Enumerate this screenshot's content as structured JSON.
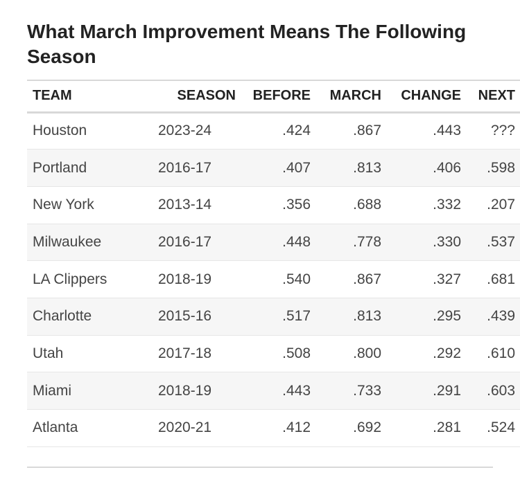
{
  "title": "What March Improvement Means The Following Season",
  "columns": [
    "TEAM",
    "SEASON",
    "BEFORE",
    "MARCH",
    "CHANGE",
    "NEXT"
  ],
  "rows": [
    [
      "Houston",
      "2023-24",
      ".424",
      ".867",
      ".443",
      "???"
    ],
    [
      "Portland",
      "2016-17",
      ".407",
      ".813",
      ".406",
      ".598"
    ],
    [
      "New York",
      "2013-14",
      ".356",
      ".688",
      ".332",
      ".207"
    ],
    [
      "Milwaukee",
      "2016-17",
      ".448",
      ".778",
      ".330",
      ".537"
    ],
    [
      "LA Clippers",
      "2018-19",
      ".540",
      ".867",
      ".327",
      ".681"
    ],
    [
      "Charlotte",
      "2015-16",
      ".517",
      ".813",
      ".295",
      ".439"
    ],
    [
      "Utah",
      "2017-18",
      ".508",
      ".800",
      ".292",
      ".610"
    ],
    [
      "Miami",
      "2018-19",
      ".443",
      ".733",
      ".291",
      ".603"
    ],
    [
      "Atlanta",
      "2020-21",
      ".412",
      ".692",
      ".281",
      ".524"
    ]
  ]
}
